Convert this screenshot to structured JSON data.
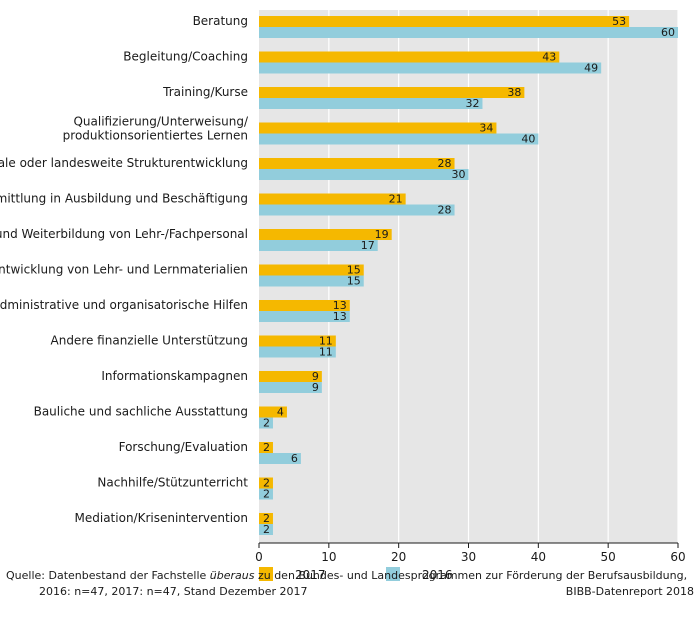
{
  "chart_data": {
    "type": "bar",
    "orientation": "horizontal",
    "categories": [
      [
        "Beratung"
      ],
      [
        "Begleitung/Coaching"
      ],
      [
        "Training/Kurse"
      ],
      [
        "Qualifizierung/Unterweisung/",
        "produktionsorientiertes Lernen"
      ],
      [
        "Regionale oder landesweite Strukturentwicklung"
      ],
      [
        "Vermittlung in Ausbildung und Beschäftigung"
      ],
      [
        "Fort- und Weiterbildung von Lehr-/Fachpersonal"
      ],
      [
        "Entwicklung von Lehr- und Lernmaterialien"
      ],
      [
        "Administrative und organisatorische Hilfen"
      ],
      [
        "Andere finanzielle Unterstützung"
      ],
      [
        "Informationskampagnen"
      ],
      [
        "Bauliche und sachliche Ausstattung"
      ],
      [
        "Forschung/Evaluation"
      ],
      [
        "Nachhilfe/Stützunterricht"
      ],
      [
        "Mediation/Krisenintervention"
      ]
    ],
    "series": [
      {
        "name": "2017",
        "color": "#f5b800",
        "values": [
          53,
          43,
          38,
          34,
          28,
          21,
          19,
          15,
          13,
          11,
          9,
          4,
          2,
          2,
          2
        ]
      },
      {
        "name": "2016",
        "color": "#92cddc",
        "values": [
          60,
          49,
          32,
          40,
          30,
          28,
          17,
          15,
          13,
          11,
          9,
          2,
          6,
          2,
          2
        ]
      }
    ],
    "xlim": [
      0,
      60
    ],
    "xticks": [
      0,
      10,
      20,
      30,
      40,
      50,
      60
    ],
    "grid": true,
    "background": "#e6e6e6",
    "legend_position": "bottom"
  },
  "footer": {
    "source_prefix": "Quelle: Datenbestand der Fachstelle ",
    "source_italic": "überaus",
    "source_suffix": " zu den Bundes- und Landesprogrammen zur Förderung der Berufsausbildung,",
    "source_line2": "2016: n=47, 2017: n=47, Stand Dezember 2017",
    "credit": "BIBB-Datenreport 2018"
  }
}
